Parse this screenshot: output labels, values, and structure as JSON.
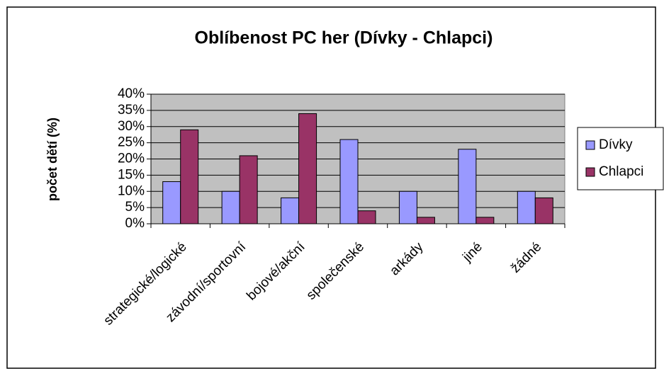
{
  "chart_data": {
    "type": "bar",
    "title": "Oblíbenost PC her (Dívky - Chlapci)",
    "y_label": "počet dětí (%)",
    "categories": [
      "strategické/logické",
      "závodní/sportovní",
      "bojové/akční",
      "společenské",
      "arkády",
      "jiné",
      "žádné"
    ],
    "series": [
      {
        "name": "Dívky",
        "color": "#9999ff",
        "values": [
          13,
          10,
          8,
          26,
          10,
          23,
          10
        ]
      },
      {
        "name": "Chlapci",
        "color": "#993366",
        "values": [
          29,
          21,
          34,
          4,
          2,
          2,
          8
        ]
      }
    ],
    "ylim": [
      0,
      40
    ],
    "yticks": [
      {
        "value": 0,
        "label": "0%"
      },
      {
        "value": 5,
        "label": "5%"
      },
      {
        "value": 10,
        "label": "10%"
      },
      {
        "value": 15,
        "label": "15%"
      },
      {
        "value": 20,
        "label": "20%"
      },
      {
        "value": 25,
        "label": "25%"
      },
      {
        "value": 30,
        "label": "30%"
      },
      {
        "value": 35,
        "label": "35%"
      },
      {
        "value": 40,
        "label": "40%"
      }
    ],
    "grid": true,
    "legend": "right"
  }
}
